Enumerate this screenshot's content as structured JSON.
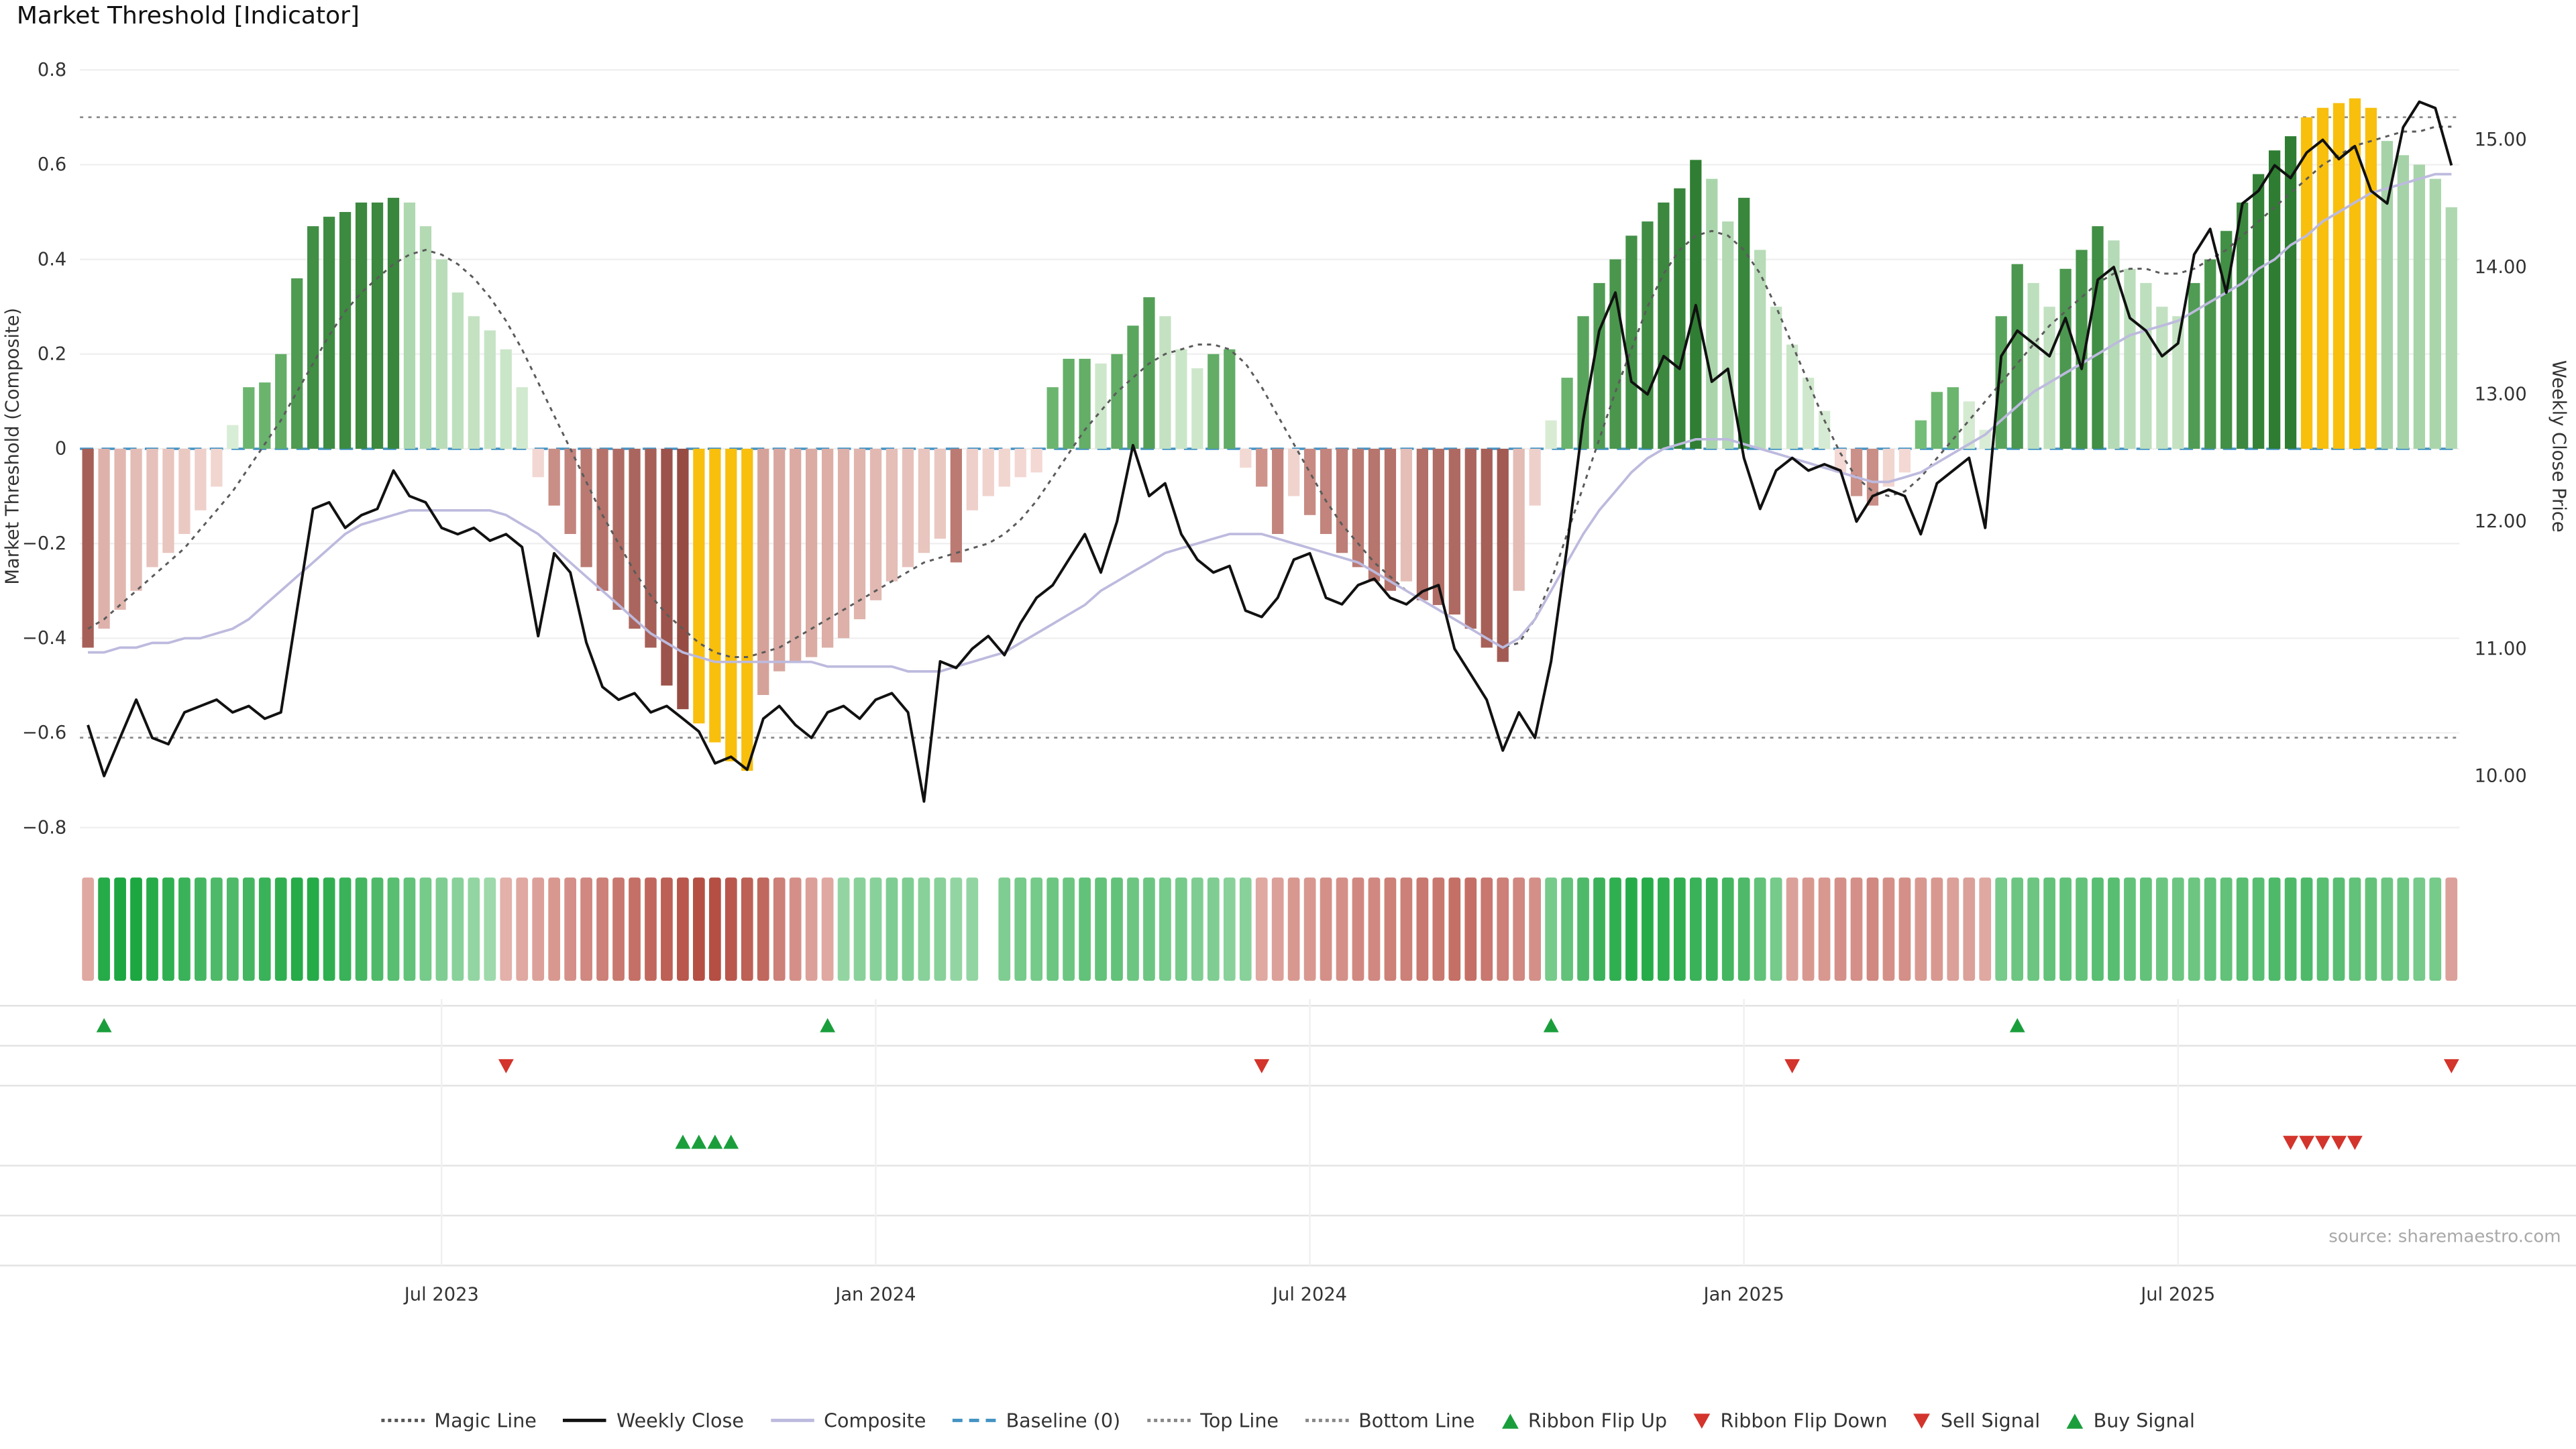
{
  "title": "Market Threshold [Indicator]",
  "source_note": "source: sharemaestro.com",
  "colors": {
    "green_dark": "#2e7d32",
    "green_mid": "#7cc47f",
    "green_fade": "#a5d3a7",
    "green_light": "#ddefd9",
    "red_dark": "#8e4138",
    "red_mid": "#d7a099",
    "red_fade": "#cf978e",
    "red_light": "#f6ded9",
    "yellow": "#f8bf0d",
    "ribbon_green_hi": "#12a339",
    "ribbon_green_lo": "#d9f0da",
    "ribbon_red_hi": "#aa372b",
    "ribbon_red_lo": "#f6d9d4",
    "close": "#111111",
    "composite": "#bdbade",
    "magic": "#5b5b5b",
    "baseline": "#4393c3",
    "guide": "#8a8a8a",
    "grid": "#f0f0f0",
    "panel_line": "#e3e3e3",
    "buy": "#1a9e3c",
    "sell": "#d3342c",
    "text": "#2e2e2e",
    "muted": "#a8a8a8"
  },
  "chart_data": {
    "type": "combo",
    "x_unit": "week",
    "n_weeks": 148,
    "x_ticks": [
      {
        "label": "Jul 2023",
        "week": 22
      },
      {
        "label": "Jan 2024",
        "week": 49
      },
      {
        "label": "Jul 2024",
        "week": 76
      },
      {
        "label": "Jan 2025",
        "week": 103
      },
      {
        "label": "Jul 2025",
        "week": 130
      }
    ],
    "left_axis": {
      "label": "Market Threshold (Composite)",
      "min": -0.8,
      "max": 0.8,
      "ticks": [
        "0.8",
        "0.6",
        "0.4",
        "0.2",
        "0",
        "−0.2",
        "−0.4",
        "−0.6",
        "−0.8"
      ],
      "tick_values": [
        0.8,
        0.6,
        0.4,
        0.2,
        0,
        -0.2,
        -0.4,
        -0.6,
        -0.8
      ]
    },
    "right_axis": {
      "label": "Weekly Close Price",
      "ticks": [
        "15.00",
        "14.00",
        "13.00",
        "12.00",
        "11.00",
        "10.00"
      ],
      "tick_values": [
        15,
        14,
        13,
        12,
        11,
        10
      ]
    },
    "baseline": 0,
    "top_line": 0.7,
    "bottom_line": -0.61,
    "extreme_hi": 0.7,
    "extreme_lo": -0.58,
    "threshold_bars": [
      -0.42,
      -0.38,
      -0.34,
      -0.3,
      -0.25,
      -0.22,
      -0.18,
      -0.13,
      -0.08,
      0.05,
      0.13,
      0.14,
      0.2,
      0.36,
      0.47,
      0.49,
      0.5,
      0.52,
      0.52,
      0.53,
      0.52,
      0.47,
      0.4,
      0.33,
      0.28,
      0.25,
      0.21,
      0.13,
      -0.06,
      -0.12,
      -0.18,
      -0.25,
      -0.3,
      -0.34,
      -0.38,
      -0.42,
      -0.5,
      -0.55,
      -0.58,
      -0.62,
      -0.66,
      -0.68,
      -0.52,
      -0.47,
      -0.45,
      -0.44,
      -0.42,
      -0.4,
      -0.36,
      -0.32,
      -0.28,
      -0.25,
      -0.22,
      -0.19,
      -0.24,
      -0.13,
      -0.1,
      -0.08,
      -0.06,
      -0.05,
      0.13,
      0.19,
      0.19,
      0.18,
      0.2,
      0.26,
      0.32,
      0.28,
      0.21,
      0.17,
      0.2,
      0.21,
      -0.04,
      -0.08,
      -0.18,
      -0.1,
      -0.14,
      -0.18,
      -0.22,
      -0.25,
      -0.28,
      -0.3,
      -0.28,
      -0.32,
      -0.33,
      -0.35,
      -0.38,
      -0.42,
      -0.45,
      -0.3,
      -0.12,
      0.06,
      0.15,
      0.28,
      0.35,
      0.4,
      0.45,
      0.48,
      0.52,
      0.55,
      0.61,
      0.57,
      0.48,
      0.53,
      0.42,
      0.3,
      0.22,
      0.15,
      0.08,
      -0.05,
      -0.1,
      -0.12,
      -0.08,
      -0.05,
      0.06,
      0.12,
      0.13,
      0.1,
      0.04,
      0.28,
      0.39,
      0.35,
      0.3,
      0.38,
      0.42,
      0.47,
      0.44,
      0.38,
      0.35,
      0.3,
      0.28,
      0.35,
      0.4,
      0.46,
      0.52,
      0.58,
      0.63,
      0.66,
      0.7,
      0.72,
      0.73,
      0.74,
      0.72,
      0.65,
      0.62,
      0.6,
      0.57,
      0.51
    ],
    "weekly_close": [
      10.4,
      10.0,
      10.3,
      10.6,
      10.3,
      10.25,
      10.5,
      10.55,
      10.6,
      10.5,
      10.55,
      10.45,
      10.5,
      11.3,
      12.1,
      12.15,
      11.95,
      12.05,
      12.1,
      12.4,
      12.2,
      12.15,
      11.95,
      11.9,
      11.95,
      11.85,
      11.9,
      11.8,
      11.1,
      11.75,
      11.6,
      11.05,
      10.7,
      10.6,
      10.65,
      10.5,
      10.55,
      10.45,
      10.35,
      10.1,
      10.15,
      10.05,
      10.45,
      10.55,
      10.4,
      10.3,
      10.5,
      10.55,
      10.45,
      10.6,
      10.65,
      10.5,
      9.8,
      10.9,
      10.85,
      11.0,
      11.1,
      10.95,
      11.2,
      11.4,
      11.5,
      11.7,
      11.9,
      11.6,
      12.0,
      12.6,
      12.2,
      12.3,
      11.9,
      11.7,
      11.6,
      11.65,
      11.3,
      11.25,
      11.4,
      11.7,
      11.75,
      11.4,
      11.35,
      11.5,
      11.55,
      11.4,
      11.35,
      11.45,
      11.5,
      11.0,
      10.8,
      10.6,
      10.2,
      10.5,
      10.3,
      10.9,
      11.8,
      12.8,
      13.5,
      13.8,
      13.1,
      13.0,
      13.3,
      13.2,
      13.7,
      13.1,
      13.2,
      12.5,
      12.1,
      12.4,
      12.5,
      12.4,
      12.45,
      12.4,
      12.0,
      12.2,
      12.25,
      12.2,
      11.9,
      12.3,
      12.4,
      12.5,
      11.95,
      13.3,
      13.5,
      13.4,
      13.3,
      13.6,
      13.2,
      13.9,
      14.0,
      13.6,
      13.5,
      13.3,
      13.4,
      14.1,
      14.3,
      13.8,
      14.5,
      14.6,
      14.8,
      14.7,
      14.9,
      15.0,
      14.85,
      14.95,
      14.6,
      14.5,
      15.1,
      15.3,
      15.25,
      14.8
    ],
    "composite": [
      -0.43,
      -0.43,
      -0.42,
      -0.42,
      -0.41,
      -0.41,
      -0.4,
      -0.4,
      -0.39,
      -0.38,
      -0.36,
      -0.33,
      -0.3,
      -0.27,
      -0.24,
      -0.21,
      -0.18,
      -0.16,
      -0.15,
      -0.14,
      -0.13,
      -0.13,
      -0.13,
      -0.13,
      -0.13,
      -0.13,
      -0.14,
      -0.16,
      -0.18,
      -0.21,
      -0.24,
      -0.27,
      -0.3,
      -0.33,
      -0.36,
      -0.39,
      -0.41,
      -0.43,
      -0.44,
      -0.45,
      -0.45,
      -0.45,
      -0.45,
      -0.45,
      -0.45,
      -0.45,
      -0.46,
      -0.46,
      -0.46,
      -0.46,
      -0.46,
      -0.47,
      -0.47,
      -0.47,
      -0.46,
      -0.45,
      -0.44,
      -0.43,
      -0.41,
      -0.39,
      -0.37,
      -0.35,
      -0.33,
      -0.3,
      -0.28,
      -0.26,
      -0.24,
      -0.22,
      -0.21,
      -0.2,
      -0.19,
      -0.18,
      -0.18,
      -0.18,
      -0.19,
      -0.2,
      -0.21,
      -0.22,
      -0.23,
      -0.24,
      -0.26,
      -0.28,
      -0.3,
      -0.32,
      -0.34,
      -0.36,
      -0.38,
      -0.4,
      -0.42,
      -0.4,
      -0.36,
      -0.3,
      -0.24,
      -0.18,
      -0.13,
      -0.09,
      -0.05,
      -0.02,
      0.0,
      0.01,
      0.02,
      0.02,
      0.02,
      0.01,
      0.0,
      -0.01,
      -0.02,
      -0.03,
      -0.04,
      -0.05,
      -0.06,
      -0.07,
      -0.07,
      -0.06,
      -0.05,
      -0.03,
      -0.01,
      0.01,
      0.03,
      0.06,
      0.09,
      0.12,
      0.14,
      0.16,
      0.18,
      0.2,
      0.22,
      0.24,
      0.25,
      0.26,
      0.27,
      0.29,
      0.31,
      0.33,
      0.35,
      0.38,
      0.4,
      0.43,
      0.45,
      0.48,
      0.5,
      0.52,
      0.54,
      0.55,
      0.56,
      0.57,
      0.58,
      0.58
    ],
    "magic_line": [
      -0.38,
      -0.36,
      -0.33,
      -0.3,
      -0.27,
      -0.24,
      -0.21,
      -0.17,
      -0.13,
      -0.09,
      -0.04,
      0.01,
      0.06,
      0.12,
      0.18,
      0.24,
      0.29,
      0.33,
      0.36,
      0.39,
      0.41,
      0.42,
      0.41,
      0.39,
      0.36,
      0.32,
      0.27,
      0.21,
      0.14,
      0.07,
      0.0,
      -0.07,
      -0.14,
      -0.2,
      -0.26,
      -0.31,
      -0.35,
      -0.38,
      -0.41,
      -0.43,
      -0.44,
      -0.44,
      -0.43,
      -0.42,
      -0.4,
      -0.38,
      -0.36,
      -0.34,
      -0.32,
      -0.3,
      -0.28,
      -0.26,
      -0.24,
      -0.23,
      -0.22,
      -0.21,
      -0.2,
      -0.18,
      -0.15,
      -0.11,
      -0.06,
      -0.01,
      0.04,
      0.08,
      0.12,
      0.15,
      0.18,
      0.2,
      0.21,
      0.22,
      0.22,
      0.21,
      0.18,
      0.13,
      0.07,
      0.01,
      -0.05,
      -0.11,
      -0.16,
      -0.2,
      -0.24,
      -0.27,
      -0.3,
      -0.32,
      -0.34,
      -0.36,
      -0.38,
      -0.4,
      -0.42,
      -0.41,
      -0.36,
      -0.28,
      -0.18,
      -0.08,
      0.02,
      0.12,
      0.21,
      0.3,
      0.37,
      0.42,
      0.45,
      0.46,
      0.45,
      0.42,
      0.37,
      0.3,
      0.22,
      0.14,
      0.06,
      -0.01,
      -0.06,
      -0.09,
      -0.1,
      -0.09,
      -0.06,
      -0.02,
      0.02,
      0.06,
      0.1,
      0.14,
      0.18,
      0.22,
      0.26,
      0.29,
      0.32,
      0.35,
      0.37,
      0.38,
      0.38,
      0.37,
      0.37,
      0.38,
      0.4,
      0.42,
      0.45,
      0.48,
      0.51,
      0.54,
      0.57,
      0.6,
      0.62,
      0.64,
      0.65,
      0.66,
      0.67,
      0.67,
      0.68,
      0.68
    ],
    "ribbon": [
      -0.3,
      0.9,
      0.95,
      0.95,
      0.9,
      0.85,
      0.8,
      0.75,
      0.7,
      0.7,
      0.75,
      0.8,
      0.85,
      0.9,
      0.9,
      0.85,
      0.8,
      0.75,
      0.7,
      0.65,
      0.6,
      0.5,
      0.45,
      0.4,
      0.35,
      0.3,
      -0.25,
      -0.3,
      -0.35,
      -0.4,
      -0.45,
      -0.5,
      -0.55,
      -0.6,
      -0.65,
      -0.7,
      -0.75,
      -0.8,
      -0.85,
      -0.85,
      -0.8,
      -0.75,
      -0.7,
      -0.55,
      -0.45,
      -0.35,
      -0.3,
      0.35,
      0.4,
      0.4,
      0.45,
      0.45,
      0.4,
      0.4,
      0.35,
      0.35,
      0,
      0.45,
      0.5,
      0.5,
      0.55,
      0.55,
      0.6,
      0.6,
      0.6,
      0.55,
      0.55,
      0.5,
      0.5,
      0.45,
      0.45,
      0.4,
      0.4,
      -0.3,
      -0.35,
      -0.4,
      -0.4,
      -0.45,
      -0.45,
      -0.5,
      -0.5,
      -0.55,
      -0.55,
      -0.6,
      -0.6,
      -0.65,
      -0.65,
      -0.6,
      -0.55,
      -0.5,
      -0.45,
      0.5,
      0.6,
      0.7,
      0.8,
      0.85,
      0.9,
      0.9,
      0.85,
      0.85,
      0.8,
      0.8,
      0.75,
      0.7,
      0.6,
      0.5,
      -0.35,
      -0.4,
      -0.4,
      -0.45,
      -0.45,
      -0.5,
      -0.45,
      -0.45,
      -0.4,
      -0.4,
      -0.35,
      -0.35,
      -0.3,
      0.5,
      0.55,
      0.55,
      0.6,
      0.6,
      0.6,
      0.65,
      0.65,
      0.6,
      0.6,
      0.55,
      0.55,
      0.55,
      0.6,
      0.6,
      0.65,
      0.65,
      0.7,
      0.7,
      0.7,
      0.65,
      0.65,
      0.6,
      0.6,
      0.55,
      0.55,
      0.5,
      0.5,
      -0.35
    ],
    "signals": {
      "ribbon_flip_up_weeks": [
        1,
        46,
        91,
        120
      ],
      "ribbon_flip_down_weeks": [
        26,
        73,
        106,
        147
      ],
      "buy_signal_weeks": [
        37,
        38,
        39,
        40
      ],
      "sell_signal_weeks": [
        137,
        138,
        139,
        140,
        141
      ]
    }
  },
  "legend": {
    "items": [
      {
        "id": "magic-line",
        "label": "Magic Line",
        "marker": "ln dot-dark"
      },
      {
        "id": "weekly-close",
        "label": "Weekly Close",
        "marker": "ln solid-black"
      },
      {
        "id": "composite",
        "label": "Composite",
        "marker": "ln solid-lav"
      },
      {
        "id": "baseline",
        "label": "Baseline (0)",
        "marker": "ln dash-blue"
      },
      {
        "id": "top-line",
        "label": "Top Line",
        "marker": "ln dot-gray"
      },
      {
        "id": "bottom-line",
        "label": "Bottom Line",
        "marker": "ln dot-gray"
      },
      {
        "id": "ribbon-flip-up",
        "label": "Ribbon Flip Up",
        "marker": "tri-up"
      },
      {
        "id": "ribbon-flip-down",
        "label": "Ribbon Flip Down",
        "marker": "tri-down"
      },
      {
        "id": "sell-signal",
        "label": "Sell Signal",
        "marker": "tri-down"
      },
      {
        "id": "buy-signal",
        "label": "Buy Signal",
        "marker": "tri-up"
      }
    ]
  }
}
